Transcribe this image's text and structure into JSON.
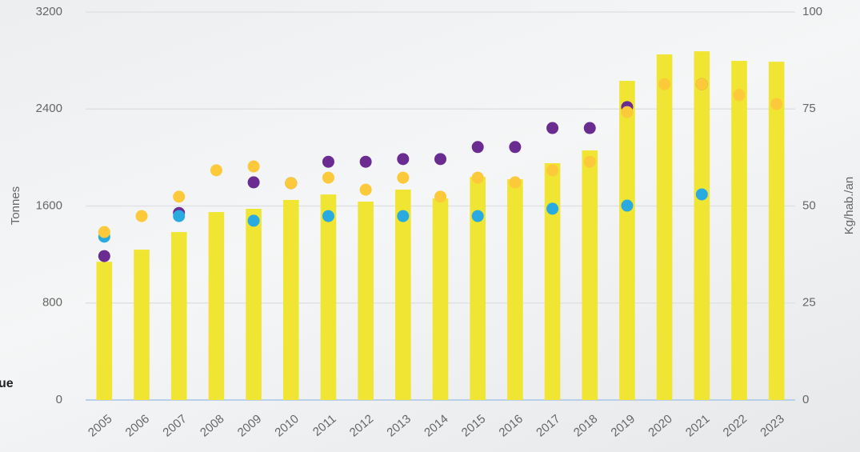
{
  "chart_data": {
    "type": "bar",
    "y_label": "Tonnes",
    "y2_label": "Kg/hab./an",
    "side_text": "ue",
    "categories": [
      "2005",
      "2006",
      "2007",
      "2008",
      "2009",
      "2010",
      "2011",
      "2012",
      "2013",
      "2014",
      "2015",
      "2016",
      "2017",
      "2018",
      "2019",
      "2020",
      "2021",
      "2022",
      "2023"
    ],
    "values": [
      1140,
      1240,
      1385,
      1550,
      1577,
      1650,
      1695,
      1636,
      1735,
      1662,
      1840,
      1820,
      1953,
      2058,
      2632,
      2850,
      2876,
      2797,
      2790
    ],
    "color": "#f0e532",
    "ylim": [
      0,
      3200
    ],
    "yticks": [
      0,
      800,
      1600,
      2400,
      3200
    ],
    "y2lim": [
      0,
      100
    ],
    "y2ticks": [
      0,
      25,
      50,
      75,
      100
    ],
    "grid": true,
    "series": [
      {
        "type": "scatter",
        "axis": "y2",
        "color": "#6a2c91",
        "values": [
          37.1,
          null,
          48.2,
          null,
          56.1,
          55.9,
          61.4,
          61.4,
          62.1,
          62.1,
          65.2,
          65.2,
          70.1,
          70.1,
          75.5,
          null,
          81.4,
          null,
          null
        ]
      },
      {
        "type": "scatter",
        "axis": "y2",
        "color": "#29abe2",
        "values": [
          42.1,
          null,
          47.4,
          null,
          46.2,
          null,
          47.4,
          null,
          47.4,
          null,
          47.4,
          null,
          49.3,
          null,
          50.1,
          null,
          53.0,
          null,
          null
        ]
      },
      {
        "type": "scatter",
        "axis": "y2",
        "color": "#fcc93a",
        "values": [
          43.3,
          47.4,
          52.4,
          59.2,
          60.2,
          55.9,
          57.3,
          54.2,
          57.3,
          52.4,
          57.3,
          56.1,
          59.2,
          61.4,
          74.2,
          81.4,
          81.4,
          78.6,
          76.3
        ]
      }
    ]
  }
}
